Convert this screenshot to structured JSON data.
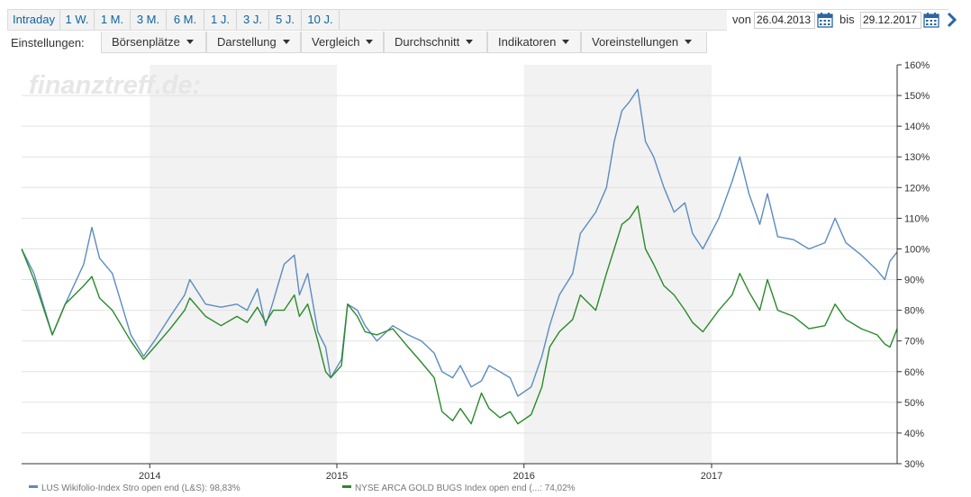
{
  "periods": [
    "Intraday",
    "1 W.",
    "1 M.",
    "3 M.",
    "6 M.",
    "1 J.",
    "3 J.",
    "5 J.",
    "10 J."
  ],
  "date_range": {
    "from_label": "von",
    "from_value": "26.04.2013",
    "to_label": "bis",
    "to_value": "29.12.2017"
  },
  "settings": {
    "label": "Einstellungen:",
    "menus": [
      "Börsenplätze",
      "Darstellung",
      "Vergleich",
      "Durchschnitt",
      "Indikatoren",
      "Voreinstellungen"
    ]
  },
  "watermark": "finanztreff.de:",
  "colors": {
    "series_1": "#5b8cc0",
    "series_2": "#2a8a2a",
    "band": "#f2f2f2",
    "grid": "#e2e2e2"
  },
  "legend": [
    {
      "label": "LUS Wikifolio-Index Stro  open end (L&S): 98,83%",
      "color": "#5b8cc0"
    },
    {
      "label": "NYSE ARCA GOLD BUGS Index  open end (...: 74,02%",
      "color": "#2a8a2a"
    }
  ],
  "chart_data": {
    "type": "line",
    "x_start": "2013-04-26",
    "x_end": "2017-12-29",
    "y_unit": "%",
    "ylim": [
      30,
      160
    ],
    "y_ticks": [
      "30%",
      "40%",
      "50%",
      "60%",
      "70%",
      "80%",
      "90%",
      "100%",
      "110%",
      "120%",
      "130%",
      "140%",
      "150%",
      "160%"
    ],
    "x_ticks": [
      {
        "label": "2014",
        "date": "2014-01-01"
      },
      {
        "label": "2015",
        "date": "2015-01-01"
      },
      {
        "label": "2016",
        "date": "2016-01-01"
      },
      {
        "label": "2017",
        "date": "2017-01-01"
      }
    ],
    "shaded_years": [
      [
        "2014-01-01",
        "2015-01-01"
      ],
      [
        "2016-01-01",
        "2017-01-01"
      ]
    ],
    "grid": true,
    "series": [
      {
        "name": "LUS Wikifolio-Index Stro  open end (L&S): 98,83%",
        "color": "#5b8cc0",
        "points": [
          [
            "2013-04-26",
            100
          ],
          [
            "2013-05-20",
            92
          ],
          [
            "2013-06-25",
            72
          ],
          [
            "2013-07-20",
            82
          ],
          [
            "2013-08-25",
            95
          ],
          [
            "2013-09-10",
            107
          ],
          [
            "2013-09-25",
            97
          ],
          [
            "2013-10-20",
            92
          ],
          [
            "2013-11-25",
            72
          ],
          [
            "2013-12-20",
            65
          ],
          [
            "2014-01-10",
            70
          ],
          [
            "2014-02-10",
            78
          ],
          [
            "2014-03-10",
            85
          ],
          [
            "2014-03-20",
            90
          ],
          [
            "2014-04-20",
            82
          ],
          [
            "2014-05-20",
            81
          ],
          [
            "2014-06-20",
            82
          ],
          [
            "2014-07-10",
            80
          ],
          [
            "2014-07-30",
            87
          ],
          [
            "2014-08-15",
            75
          ],
          [
            "2014-08-30",
            83
          ],
          [
            "2014-09-20",
            95
          ],
          [
            "2014-10-10",
            98
          ],
          [
            "2014-10-20",
            85
          ],
          [
            "2014-11-05",
            92
          ],
          [
            "2014-11-25",
            73
          ],
          [
            "2014-12-10",
            68
          ],
          [
            "2014-12-20",
            58
          ],
          [
            "2015-01-10",
            64
          ],
          [
            "2015-01-22",
            82
          ],
          [
            "2015-02-10",
            80
          ],
          [
            "2015-02-25",
            75
          ],
          [
            "2015-03-20",
            70
          ],
          [
            "2015-04-20",
            75
          ],
          [
            "2015-05-20",
            72
          ],
          [
            "2015-06-15",
            70
          ],
          [
            "2015-07-10",
            66
          ],
          [
            "2015-07-25",
            60
          ],
          [
            "2015-08-15",
            58
          ],
          [
            "2015-08-30",
            62
          ],
          [
            "2015-09-20",
            55
          ],
          [
            "2015-10-10",
            57
          ],
          [
            "2015-10-25",
            62
          ],
          [
            "2015-11-15",
            60
          ],
          [
            "2015-12-05",
            58
          ],
          [
            "2015-12-20",
            52
          ],
          [
            "2016-01-15",
            55
          ],
          [
            "2016-02-05",
            65
          ],
          [
            "2016-02-20",
            75
          ],
          [
            "2016-03-10",
            85
          ],
          [
            "2016-04-05",
            92
          ],
          [
            "2016-04-20",
            105
          ],
          [
            "2016-05-20",
            112
          ],
          [
            "2016-06-10",
            120
          ],
          [
            "2016-06-25",
            135
          ],
          [
            "2016-07-10",
            145
          ],
          [
            "2016-07-25",
            148
          ],
          [
            "2016-08-10",
            152
          ],
          [
            "2016-08-25",
            135
          ],
          [
            "2016-09-10",
            130
          ],
          [
            "2016-09-30",
            120
          ],
          [
            "2016-10-20",
            112
          ],
          [
            "2016-11-10",
            115
          ],
          [
            "2016-11-25",
            105
          ],
          [
            "2016-12-15",
            100
          ],
          [
            "2017-01-15",
            110
          ],
          [
            "2017-02-10",
            122
          ],
          [
            "2017-02-25",
            130
          ],
          [
            "2017-03-15",
            118
          ],
          [
            "2017-04-05",
            108
          ],
          [
            "2017-04-20",
            118
          ],
          [
            "2017-05-10",
            104
          ],
          [
            "2017-06-10",
            103
          ],
          [
            "2017-07-10",
            100
          ],
          [
            "2017-08-10",
            102
          ],
          [
            "2017-08-30",
            110
          ],
          [
            "2017-09-20",
            102
          ],
          [
            "2017-10-20",
            98
          ],
          [
            "2017-11-20",
            93
          ],
          [
            "2017-12-05",
            90
          ],
          [
            "2017-12-15",
            96
          ],
          [
            "2017-12-29",
            99
          ]
        ]
      },
      {
        "name": "NYSE ARCA GOLD BUGS Index  open end (...: 74,02%",
        "color": "#2a8a2a",
        "points": [
          [
            "2013-04-26",
            100
          ],
          [
            "2013-05-20",
            90
          ],
          [
            "2013-06-25",
            72
          ],
          [
            "2013-07-20",
            82
          ],
          [
            "2013-08-25",
            88
          ],
          [
            "2013-09-10",
            91
          ],
          [
            "2013-09-25",
            84
          ],
          [
            "2013-10-20",
            80
          ],
          [
            "2013-11-25",
            70
          ],
          [
            "2013-12-20",
            64
          ],
          [
            "2014-01-10",
            68
          ],
          [
            "2014-02-10",
            74
          ],
          [
            "2014-03-10",
            80
          ],
          [
            "2014-03-20",
            84
          ],
          [
            "2014-04-20",
            78
          ],
          [
            "2014-05-20",
            75
          ],
          [
            "2014-06-20",
            78
          ],
          [
            "2014-07-10",
            76
          ],
          [
            "2014-07-30",
            81
          ],
          [
            "2014-08-15",
            76
          ],
          [
            "2014-08-30",
            80
          ],
          [
            "2014-09-20",
            80
          ],
          [
            "2014-10-10",
            85
          ],
          [
            "2014-10-20",
            78
          ],
          [
            "2014-11-05",
            82
          ],
          [
            "2014-11-25",
            70
          ],
          [
            "2014-12-10",
            60
          ],
          [
            "2014-12-20",
            58
          ],
          [
            "2015-01-10",
            62
          ],
          [
            "2015-01-22",
            82
          ],
          [
            "2015-02-10",
            78
          ],
          [
            "2015-02-25",
            73
          ],
          [
            "2015-03-20",
            72
          ],
          [
            "2015-04-20",
            74
          ],
          [
            "2015-05-20",
            68
          ],
          [
            "2015-06-15",
            63
          ],
          [
            "2015-07-10",
            58
          ],
          [
            "2015-07-25",
            47
          ],
          [
            "2015-08-15",
            44
          ],
          [
            "2015-08-30",
            48
          ],
          [
            "2015-09-20",
            43
          ],
          [
            "2015-10-10",
            53
          ],
          [
            "2015-10-25",
            48
          ],
          [
            "2015-11-15",
            45
          ],
          [
            "2015-12-05",
            47
          ],
          [
            "2015-12-20",
            43
          ],
          [
            "2016-01-15",
            46
          ],
          [
            "2016-02-05",
            55
          ],
          [
            "2016-02-20",
            68
          ],
          [
            "2016-03-10",
            73
          ],
          [
            "2016-04-05",
            77
          ],
          [
            "2016-04-20",
            85
          ],
          [
            "2016-05-20",
            80
          ],
          [
            "2016-06-10",
            92
          ],
          [
            "2016-06-25",
            100
          ],
          [
            "2016-07-10",
            108
          ],
          [
            "2016-07-25",
            110
          ],
          [
            "2016-08-10",
            114
          ],
          [
            "2016-08-25",
            100
          ],
          [
            "2016-09-10",
            95
          ],
          [
            "2016-09-30",
            88
          ],
          [
            "2016-10-20",
            85
          ],
          [
            "2016-11-10",
            80
          ],
          [
            "2016-11-25",
            76
          ],
          [
            "2016-12-15",
            73
          ],
          [
            "2017-01-15",
            80
          ],
          [
            "2017-02-10",
            85
          ],
          [
            "2017-02-25",
            92
          ],
          [
            "2017-03-15",
            86
          ],
          [
            "2017-04-05",
            80
          ],
          [
            "2017-04-20",
            90
          ],
          [
            "2017-05-10",
            80
          ],
          [
            "2017-06-10",
            78
          ],
          [
            "2017-07-10",
            74
          ],
          [
            "2017-08-10",
            75
          ],
          [
            "2017-08-30",
            82
          ],
          [
            "2017-09-20",
            77
          ],
          [
            "2017-10-20",
            74
          ],
          [
            "2017-11-20",
            72
          ],
          [
            "2017-12-05",
            69
          ],
          [
            "2017-12-15",
            68
          ],
          [
            "2017-12-29",
            74
          ]
        ]
      }
    ]
  }
}
